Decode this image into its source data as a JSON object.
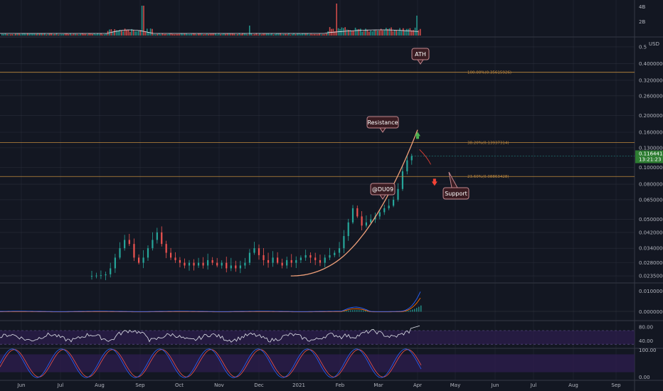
{
  "chart_data": {
    "type": "candlestick",
    "instrument_currency": "USD",
    "y_scale": "log",
    "price_ticks": [
      "0.5",
      "0.40000000",
      "0.32000000",
      "0.26000000",
      "0.20000000",
      "0.16000000",
      "0.13000000",
      "0.10000000",
      "0.08000000",
      "0.06500000",
      "0.05000000",
      "0.04200000",
      "0.03400000",
      "0.02800000",
      "0.02350000"
    ],
    "price_tick_values": [
      0.5,
      0.4,
      0.32,
      0.26,
      0.2,
      0.16,
      0.13,
      0.1,
      0.08,
      0.065,
      0.05,
      0.042,
      0.034,
      0.028,
      0.0235
    ],
    "x_ticks": [
      "Jun",
      "Jul",
      "Aug",
      "Sep",
      "Oct",
      "Nov",
      "Dec",
      "2021",
      "Feb",
      "Mar",
      "Apr",
      "May",
      "Jun",
      "Jul",
      "Aug",
      "Sep"
    ],
    "volume_ticks": [
      "4B",
      "2B"
    ],
    "current_price": "0.11644183",
    "countdown": "13:21:23",
    "fib_levels": [
      {
        "label": "100.00%(0.35615926)",
        "value": 0.35615926
      },
      {
        "label": "38.20%(0.13937314)",
        "value": 0.13937314
      },
      {
        "label": "23.60%(0.08863428)",
        "value": 0.08863428
      }
    ],
    "annotations": [
      "ATH",
      "Resistance",
      "@DU09",
      "Support"
    ],
    "closes": [
      0.0235,
      0.0236,
      0.0237,
      0.024,
      0.026,
      0.03,
      0.034,
      0.038,
      0.036,
      0.03,
      0.028,
      0.03,
      0.034,
      0.038,
      0.042,
      0.036,
      0.032,
      0.03,
      0.029,
      0.028,
      0.027,
      0.028,
      0.027,
      0.028,
      0.027,
      0.029,
      0.028,
      0.027,
      0.028,
      0.026,
      0.027,
      0.026,
      0.027,
      0.028,
      0.032,
      0.034,
      0.031,
      0.029,
      0.028,
      0.03,
      0.028,
      0.027,
      0.029,
      0.028,
      0.029,
      0.03,
      0.031,
      0.03,
      0.029,
      0.028,
      0.03,
      0.031,
      0.032,
      0.034,
      0.04,
      0.048,
      0.058,
      0.052,
      0.046,
      0.048,
      0.05,
      0.052,
      0.055,
      0.058,
      0.06,
      0.065,
      0.075,
      0.095,
      0.11,
      0.1164
    ],
    "macd": {
      "ticks": [
        "0.01000000",
        "0.00000000"
      ],
      "tick_values": [
        0.01,
        0.0
      ]
    },
    "rsi": {
      "ticks": [
        "80.00",
        "40.00"
      ],
      "tick_values": [
        80,
        40
      ]
    },
    "stoch_rsi": {
      "ticks": [
        "100.00",
        "0.00"
      ],
      "tick_values": [
        100,
        0
      ]
    }
  },
  "colors": {
    "bg": "#131722",
    "grid": "#2a2e39",
    "up": "#26a69a",
    "down": "#ef5350",
    "fib": "#c08a3e",
    "curve": "#f0a07a",
    "macd_line": "#2962ff",
    "signal_line": "#ff6d00",
    "rsi_band": "#2d1e4f",
    "price_tag": "#2e7d32",
    "arrow_up": "#4caf50",
    "arrow_down": "#f44336"
  }
}
